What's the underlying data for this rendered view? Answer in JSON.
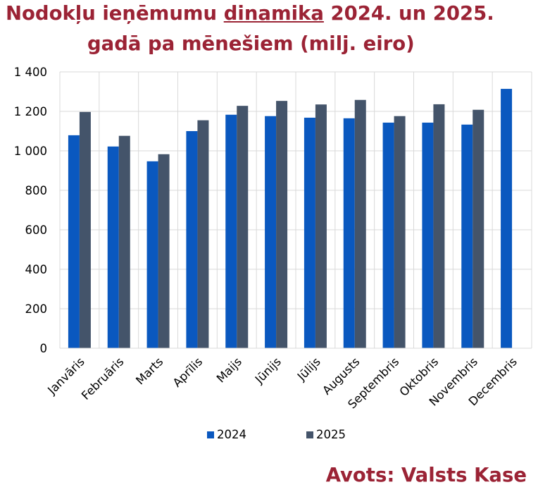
{
  "title": {
    "part1": "Nodokļu ieņēmumu ",
    "underlined": "dinamika",
    "part2": " 2024. un 2025.",
    "line2": "gadā pa mēnešiem (milj. eiro)"
  },
  "source": "Avots: Valsts Kase",
  "colors": {
    "title": "#9b2335",
    "series_2024": "#0a58bf",
    "series_2025": "#44546a",
    "gridline": "#d9d9d9"
  },
  "chart_data": {
    "type": "bar",
    "title": "Nodokļu ieņēmumu dinamika 2024. un 2025. gadā pa mēnešiem (milj. eiro)",
    "xlabel": "",
    "ylabel": "",
    "ylim": [
      0,
      1400
    ],
    "yticks": [
      0,
      200,
      400,
      600,
      800,
      1000,
      1200,
      1400
    ],
    "ytick_labels": [
      "0",
      "200",
      "400",
      "600",
      "800",
      "1 000",
      "1 200",
      "1 400"
    ],
    "grid": true,
    "legend_position": "bottom",
    "categories": [
      "Janvāris",
      "Februāris",
      "Marts",
      "Aprīlis",
      "Maijs",
      "Jūnijs",
      "Jūlijs",
      "Augusts",
      "Septembris",
      "Oktobris",
      "Novembris",
      "Decembris"
    ],
    "series": [
      {
        "name": "2024",
        "values": [
          1079,
          1022,
          947,
          1100,
          1183,
          1176,
          1168,
          1165,
          1143,
          1143,
          1133,
          1314
        ]
      },
      {
        "name": "2025",
        "values": [
          1197,
          1076,
          983,
          1155,
          1228,
          1253,
          1235,
          1258,
          1176,
          1236,
          1208,
          null
        ]
      }
    ]
  }
}
